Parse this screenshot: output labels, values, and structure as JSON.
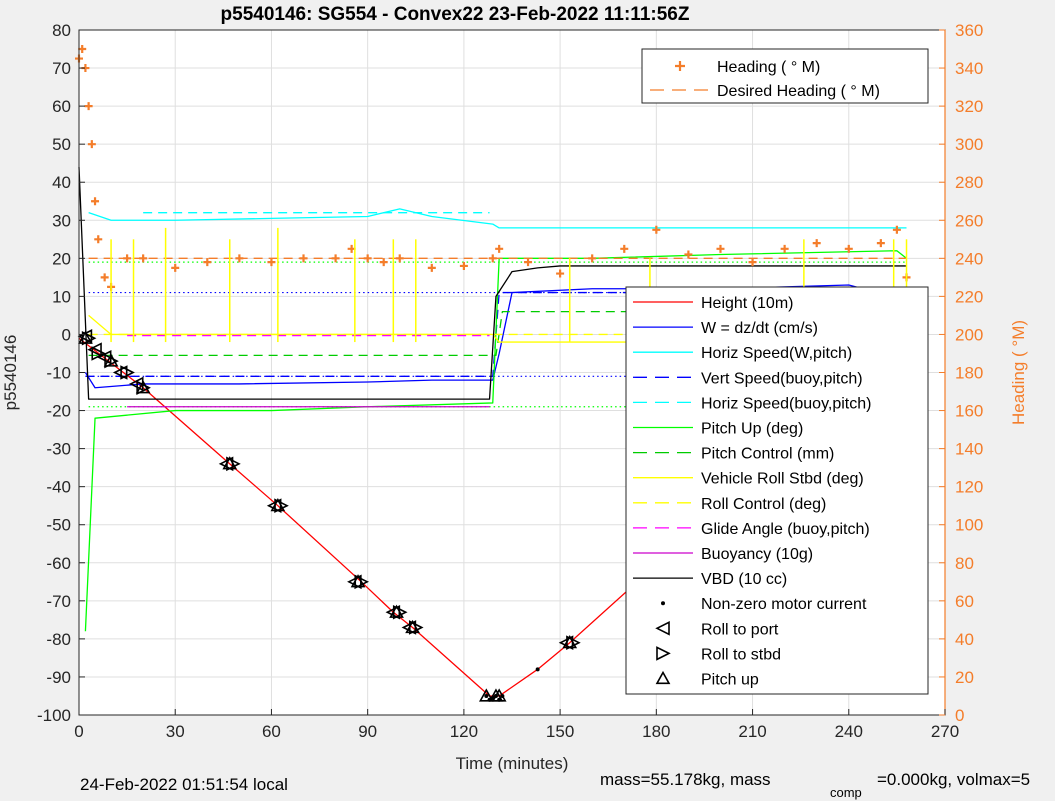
{
  "chart_data": {
    "type": "line",
    "title": "p5540146: SG554 - Convex22 23-Feb-2022 11:11:56Z",
    "xlabel": "Time (minutes)",
    "ylabel_left": "p5540146",
    "ylabel_right": "Heading (  °M)",
    "xlim": [
      0,
      270
    ],
    "ylim_left": [
      -100,
      80
    ],
    "ylim_right": [
      0,
      360
    ],
    "x_ticks": [
      "0",
      "30",
      "60",
      "90",
      "120",
      "150",
      "180",
      "210",
      "240",
      "270"
    ],
    "y_ticks_left": [
      "80",
      "70",
      "60",
      "50",
      "40",
      "30",
      "20",
      "10",
      "0",
      "-10",
      "-20",
      "-30",
      "-40",
      "-50",
      "-60",
      "-70",
      "-80",
      "-90",
      "-100"
    ],
    "y_ticks_right": [
      "360",
      "340",
      "320",
      "300",
      "280",
      "260",
      "240",
      "220",
      "200",
      "180",
      "160",
      "140",
      "120",
      "100",
      "80",
      "60",
      "40",
      "20",
      "0"
    ],
    "grid": true,
    "footer_left": "24-Feb-2022 01:51:54 local",
    "footer_right": "mass=55.178kg, mass",
    "footer_sub": "comp",
    "footer_right2": "=0.000kg, volmax=5",
    "heading_legend": [
      {
        "label": "Heading (  ° M)",
        "color": "#f47d2a",
        "style": "plus"
      },
      {
        "label": "Desired Heading (    ° M)",
        "color": "#f47d2a",
        "style": "dash"
      }
    ],
    "main_legend": [
      {
        "label": "Height (10m)",
        "color": "#ff0000",
        "style": "solid"
      },
      {
        "label": "W = dz/dt (cm/s)",
        "color": "#0000ff",
        "style": "solid"
      },
      {
        "label": "Horiz Speed(W,pitch)",
        "color": "#00ffff",
        "style": "solid"
      },
      {
        "label": "Vert Speed(buoy,pitch)",
        "color": "#0000ff",
        "style": "dash"
      },
      {
        "label": "Horiz Speed(buoy,pitch)",
        "color": "#00ffff",
        "style": "dash"
      },
      {
        "label": "Pitch Up (deg)",
        "color": "#00ff00",
        "style": "solid"
      },
      {
        "label": "Pitch Control (mm)",
        "color": "#00cc00",
        "style": "dash"
      },
      {
        "label": "Vehicle Roll Stbd (deg)",
        "color": "#ffff00",
        "style": "solid"
      },
      {
        "label": "Roll Control (deg)",
        "color": "#ffff00",
        "style": "dash"
      },
      {
        "label": "Glide Angle (buoy,pitch)",
        "color": "#ff00ff",
        "style": "dash"
      },
      {
        "label": "Buoyancy (10g)",
        "color": "#cc00cc",
        "style": "solid"
      },
      {
        "label": "VBD (10 cc)",
        "color": "#000000",
        "style": "solid"
      },
      {
        "label": "Non-zero motor current",
        "color": "#000000",
        "style": "dot"
      },
      {
        "label": "Roll to port",
        "color": "#000000",
        "style": "tri-left"
      },
      {
        "label": "Roll to stbd",
        "color": "#000000",
        "style": "tri-right"
      },
      {
        "label": "Pitch up",
        "color": "#000000",
        "style": "tri-up"
      }
    ],
    "series": [
      {
        "name": "Height (10m)",
        "color": "#ff0000",
        "axis": "left",
        "style": "solid",
        "x": [
          0,
          20,
          47,
          62,
          88,
          98,
          104,
          128,
          131,
          143,
          153,
          178,
          185,
          226,
          232,
          254,
          259
        ],
        "y": [
          -1,
          -14,
          -34,
          -45,
          -65,
          -73,
          -77,
          -95,
          -95,
          -88,
          -81,
          -62,
          -57,
          -25,
          -20,
          -3,
          0
        ]
      },
      {
        "name": "W = dz/dt (cm/s)",
        "color": "#0000ff",
        "axis": "left",
        "style": "solid",
        "x": [
          2,
          5,
          20,
          50,
          90,
          110,
          129,
          131,
          135,
          160,
          200,
          240,
          258
        ],
        "y": [
          -10,
          -14,
          -13,
          -13,
          -12.5,
          -12,
          -12,
          -5,
          11,
          12,
          12,
          13,
          9
        ]
      },
      {
        "name": "Horiz Speed(W,pitch)",
        "color": "#00ffff",
        "axis": "left",
        "style": "solid",
        "x": [
          3,
          10,
          30,
          60,
          90,
          100,
          110,
          129,
          131,
          258
        ],
        "y": [
          32,
          30,
          30,
          30.5,
          31,
          33,
          31,
          29,
          28,
          28
        ]
      },
      {
        "name": "Vert Speed(buoy,pitch)",
        "color": "#0000ff",
        "axis": "left",
        "style": "dash",
        "x": [
          2,
          129,
          131,
          258
        ],
        "y": [
          -11,
          -11,
          11,
          11
        ]
      },
      {
        "name": "Horiz Speed(buoy,pitch)",
        "color": "#00ffff",
        "axis": "left",
        "style": "dash",
        "x": [
          20,
          128
        ],
        "y": [
          32,
          32
        ]
      },
      {
        "name": "Pitch Up (deg)",
        "color": "#00ff00",
        "axis": "left",
        "style": "solid",
        "x": [
          2,
          5,
          30,
          60,
          90,
          129,
          131,
          160,
          200,
          255,
          258
        ],
        "y": [
          -78,
          -22,
          -20,
          -20,
          -19,
          -18,
          20,
          20,
          21,
          22,
          20
        ]
      },
      {
        "name": "Pitch Control (mm)",
        "color": "#00cc00",
        "axis": "left",
        "style": "dash",
        "x": [
          3,
          130,
          132,
          258
        ],
        "y": [
          -5.5,
          -5.5,
          6,
          6
        ]
      },
      {
        "name": "Vehicle Roll Stbd (deg)",
        "color": "#ffff00",
        "axis": "left",
        "style": "solid",
        "x": [
          3,
          10,
          60,
          90,
          129,
          131,
          200,
          258
        ],
        "y": [
          5,
          0,
          0,
          0,
          0,
          -2,
          -2,
          -2
        ]
      },
      {
        "name": "Roll Control (deg)",
        "color": "#ffff00",
        "axis": "left",
        "style": "dash",
        "x": [
          3,
          258
        ],
        "y": [
          0,
          0
        ]
      },
      {
        "name": "Glide Angle (buoy,pitch)",
        "color": "#ff00ff",
        "axis": "left",
        "style": "dash",
        "x": [
          15,
          128
        ],
        "y": [
          -0.3,
          -0.3
        ]
      },
      {
        "name": "Buoyancy (10g)",
        "color": "#cc00cc",
        "axis": "left",
        "style": "solid",
        "x": [
          15,
          128
        ],
        "y": [
          -19,
          -19
        ]
      },
      {
        "name": "VBD (10 cc)",
        "color": "#000000",
        "axis": "left",
        "style": "solid",
        "x": [
          0,
          3,
          128,
          130,
          135,
          143,
          150,
          258
        ],
        "y": [
          44,
          -17,
          -17,
          10,
          16.5,
          17.5,
          18,
          18
        ]
      },
      {
        "name": "Heading (  ° M)",
        "color": "#f47d2a",
        "axis": "right",
        "style": "plus",
        "x": [
          0,
          1,
          2,
          3,
          4,
          5,
          6,
          8,
          10,
          15,
          20,
          30,
          40,
          50,
          60,
          70,
          80,
          85,
          90,
          95,
          100,
          110,
          120,
          129,
          131,
          140,
          150,
          160,
          170,
          180,
          190,
          200,
          210,
          220,
          230,
          240,
          250,
          255,
          258
        ],
        "y": [
          345,
          350,
          340,
          320,
          300,
          270,
          250,
          230,
          225,
          240,
          240,
          235,
          238,
          240,
          238,
          240,
          240,
          245,
          240,
          238,
          240,
          235,
          236,
          240,
          245,
          238,
          232,
          240,
          245,
          255,
          242,
          245,
          238,
          245,
          248,
          245,
          248,
          255,
          230
        ]
      },
      {
        "name": "Desired Heading (    ° M)",
        "color": "#f47d2a",
        "axis": "right",
        "style": "dash",
        "x": [
          3,
          258
        ],
        "y": [
          240,
          240
        ]
      }
    ],
    "dotted_refs": [
      {
        "color": "#0000ff",
        "y": 11
      },
      {
        "color": "#0000ff",
        "y": -11
      },
      {
        "color": "#00ff00",
        "y": 19
      },
      {
        "color": "#00ff00",
        "y": -19
      }
    ],
    "roll_spikes": {
      "color": "#ffff00",
      "x": [
        10,
        17,
        27,
        47,
        62,
        86,
        98,
        105,
        153,
        178,
        226,
        254,
        258
      ],
      "y": [
        25,
        25,
        28,
        25,
        28,
        25,
        25,
        25,
        20,
        20,
        25,
        25,
        25
      ]
    },
    "markers": {
      "roll_port": {
        "x": [
          2,
          5,
          8,
          13,
          18,
          46,
          61,
          86,
          98,
          103,
          152,
          177,
          183,
          224,
          230,
          252,
          257
        ],
        "y": [
          -0.5,
          -4,
          -6,
          -10,
          -13,
          -34,
          -45,
          -65,
          -73,
          -77,
          -81,
          -62,
          -57,
          -25,
          -20,
          -3,
          0
        ]
      },
      "roll_stbd": {
        "x": [
          3,
          6,
          10,
          15,
          20,
          48,
          63,
          88,
          100,
          105,
          154,
          179,
          186,
          227,
          233,
          254,
          259
        ],
        "y": [
          -1,
          -5,
          -7,
          -10,
          -14,
          -34,
          -45,
          -65,
          -73,
          -77,
          -81,
          -62,
          -57,
          -25,
          -20,
          -3,
          0
        ]
      },
      "pitch_up": {
        "x": [
          2,
          10,
          20,
          47,
          62,
          87,
          99,
          104,
          127,
          130,
          131,
          153,
          178,
          185,
          226,
          232,
          254,
          258
        ],
        "y": [
          -1,
          -7,
          -14,
          -34,
          -45,
          -65,
          -73,
          -77,
          -95,
          -95,
          -95,
          -81,
          -62,
          -57,
          -25,
          -20,
          -3,
          0
        ]
      },
      "motor_current": {
        "x": [
          127,
          128,
          129,
          130,
          131,
          132,
          143
        ],
        "y": [
          -95,
          -96,
          -95.5,
          -95,
          -96,
          -95,
          -88
        ]
      }
    }
  }
}
